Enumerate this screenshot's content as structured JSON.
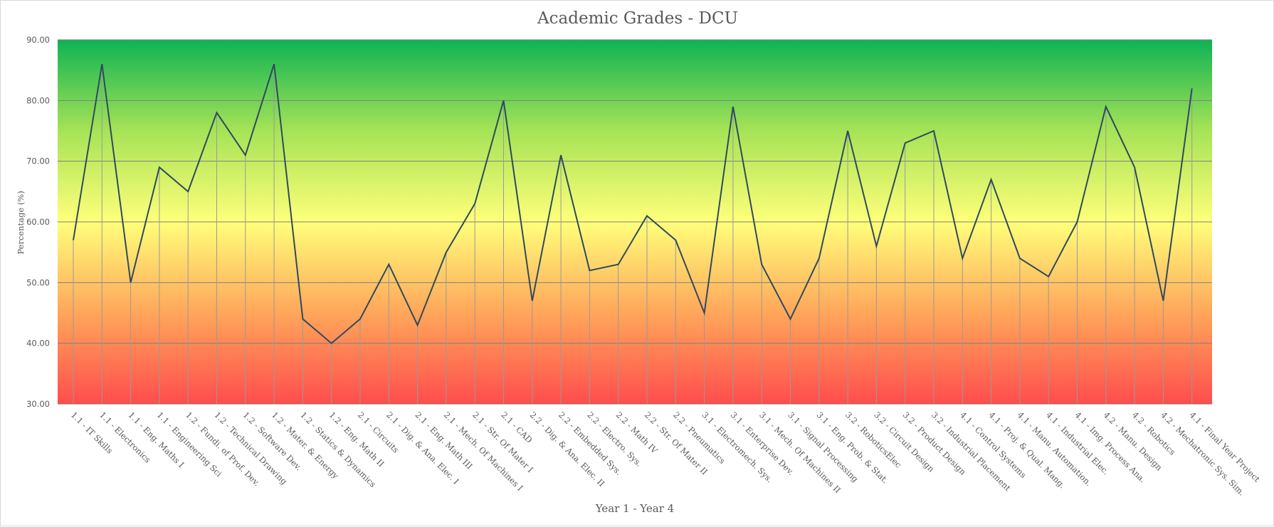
{
  "chart_data": {
    "type": "line",
    "title": "Academic Grades - DCU",
    "xlabel": "Year 1 - Year 4",
    "ylabel": "Percentage (%)",
    "ylim": [
      30,
      90
    ],
    "yticks": [
      "30.00",
      "40.00",
      "50.00",
      "60.00",
      "70.00",
      "80.00",
      "90.00"
    ],
    "grid": true,
    "legend": "none",
    "background_gradient": [
      "#ff4d4d",
      "#ffa65a",
      "#ffff7a",
      "#a6e356",
      "#0db353"
    ],
    "line_color": "#2e4a5e",
    "categories": [
      "1.1 - IT Skills",
      "1.1 - Electronics",
      "1.1 - Eng. Maths I",
      "1.1 - Engineering Sci",
      "1.2 - Fundi. of Prof. Dev.",
      "1.2 - Technical Drawing",
      "1.2 - Software Dev.",
      "1.2 - Mater. & Energy",
      "1.2 - Statics & Dynamics",
      "1.2 - Eng. Math II",
      "2.1 - Circuits",
      "2.1 - Dig. & Ana. Elec. I",
      "2.1 - Eng. Math III",
      "2.1 - Mech. Of Machines I",
      "2.1 - Str. Of Mater I",
      "2.1 - CAD",
      "2.2 - Dig. & Ana. Elec. II",
      "2.2 - Embedded Sys.",
      "2.2 - Electro. Sys.",
      "2.2 - Math IV",
      "2.2 - Str. Of Mater II",
      "2.2 - Pneumatics",
      "3.1 - Electromech. Sys.",
      "3.1 - Enterprise Dev.",
      "3.1 - Mech. Of Machines II",
      "3.1 - Signal Processing",
      "3.1 - Eng. Prob. & Stat.",
      "3.2 - RoboticsElec",
      "3.2 - Circuit Design",
      "3.2 - Product Design",
      "3.2 - Industrial Placement",
      "4.1 - Control Systems",
      "4.1 - Proj. & Qual. Mang.",
      "4.1 - Manu. Automation.",
      "4.1 - Industrial Elec.",
      "4.1 - Img. Process Ana.",
      "4.2 - Manu. Design",
      "4.2 - Robotics",
      "4.2 - Mechatronic Sys. Sim.",
      "4.1 - Final Year Project"
    ],
    "values": [
      57,
      86,
      50,
      69,
      65,
      78,
      71,
      86,
      44,
      40,
      44,
      53,
      43,
      55,
      63,
      80,
      47,
      71,
      52,
      53,
      61,
      57,
      45,
      79,
      53,
      44,
      54,
      75,
      56,
      73,
      75,
      54,
      67,
      54,
      51,
      60,
      79,
      69,
      47,
      82
    ]
  }
}
